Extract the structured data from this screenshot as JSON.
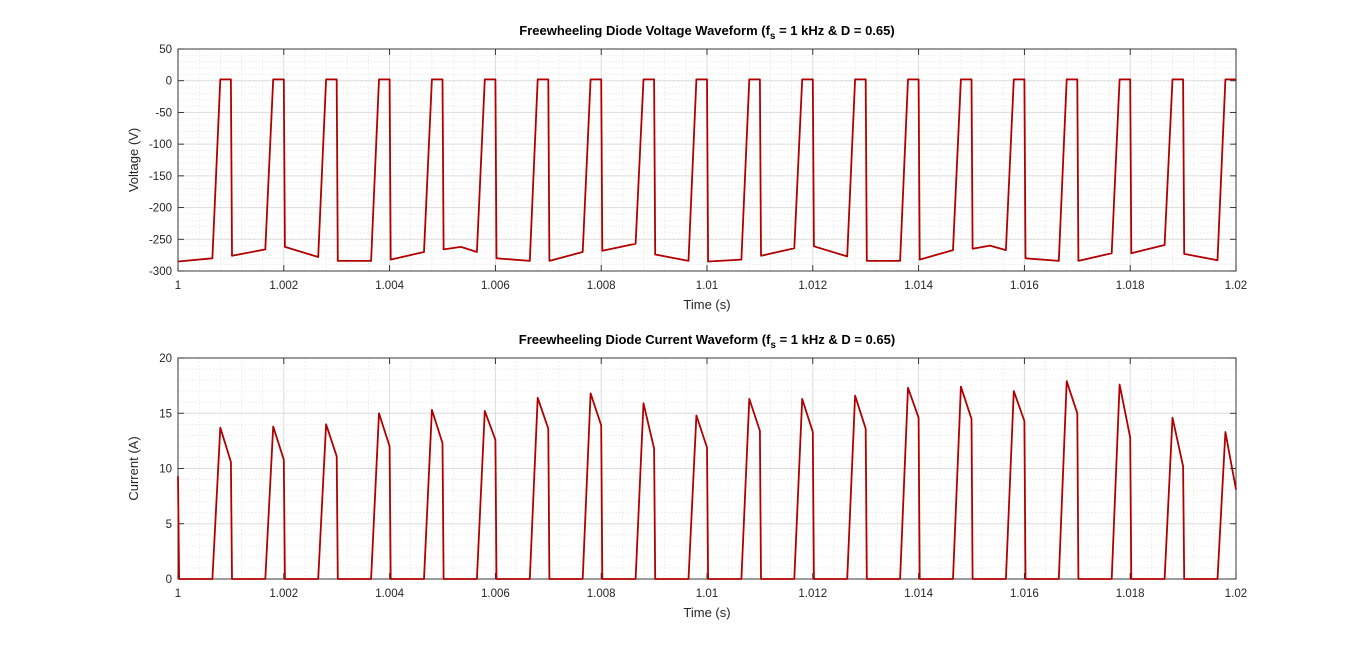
{
  "chart_data": [
    {
      "type": "line",
      "title_main": "Freewheeling Diode Voltage Waveform (f",
      "title_sub": "s",
      "title_rest": " = 1 kHz & D = 0.65)",
      "xlabel": "Time (s)",
      "ylabel": "Voltage (V)",
      "xlim": [
        1.0,
        1.02
      ],
      "ylim": [
        -300,
        50
      ],
      "xticks": [
        1.0,
        1.002,
        1.004,
        1.006,
        1.008,
        1.01,
        1.012,
        1.014,
        1.016,
        1.018,
        1.02
      ],
      "xtick_labels": [
        "1",
        "1.002",
        "1.004",
        "1.006",
        "1.008",
        "1.01",
        "1.012",
        "1.014",
        "1.016",
        "1.018",
        "1.02"
      ],
      "yticks": [
        -300,
        -250,
        -200,
        -150,
        -100,
        -50,
        0,
        50
      ],
      "ytick_labels": [
        "-300",
        "-250",
        "-200",
        "-150",
        "-100",
        "-50",
        "0",
        "50"
      ],
      "grid": true,
      "minor_grid": true,
      "line_color": "#b00000",
      "series": [
        {
          "x": [
            1.0,
            1.00065,
            1.0008,
            1.001,
            1.00102,
            1.00165,
            1.0018,
            1.002,
            1.00202,
            1.00265,
            1.0028,
            1.003,
            1.00302,
            1.00365,
            1.0038,
            1.004,
            1.00402,
            1.00465,
            1.0048,
            1.005,
            1.00502,
            1.00535,
            1.00565,
            1.0058,
            1.006,
            1.00602,
            1.00665,
            1.0068,
            1.007,
            1.00702,
            1.00765,
            1.0078,
            1.008,
            1.00802,
            1.00865,
            1.0088,
            1.009,
            1.00902,
            1.00965,
            1.0098,
            1.01,
            1.01002,
            1.01065,
            1.0108,
            1.011,
            1.01102,
            1.01165,
            1.0118,
            1.012,
            1.01202,
            1.01265,
            1.0128,
            1.013,
            1.01302,
            1.01365,
            1.0138,
            1.014,
            1.01402,
            1.01465,
            1.0148,
            1.015,
            1.01502,
            1.01535,
            1.01565,
            1.0158,
            1.016,
            1.01602,
            1.01665,
            1.0168,
            1.017,
            1.01702,
            1.01765,
            1.0178,
            1.018,
            1.01802,
            1.01865,
            1.0188,
            1.019,
            1.01902,
            1.01965,
            1.0198,
            1.02
          ],
          "y": [
            -285,
            -280,
            2,
            2,
            -276,
            -266,
            2,
            2,
            -262,
            -278,
            2,
            2,
            -284,
            -284,
            2,
            2,
            -282,
            -270,
            2,
            2,
            -266,
            -262,
            -270,
            2,
            2,
            -280,
            -284,
            2,
            2,
            -284,
            -270,
            2,
            2,
            -268,
            -257,
            2,
            2,
            -274,
            -284,
            2,
            2,
            -285,
            -282,
            2,
            2,
            -276,
            -264,
            2,
            2,
            -261,
            -277,
            2,
            2,
            -284,
            -284,
            2,
            2,
            -282,
            -267,
            2,
            2,
            -265,
            -260,
            -267,
            2,
            2,
            -280,
            -284,
            2,
            2,
            -284,
            -272,
            2,
            2,
            -272,
            -259,
            2,
            2,
            -273,
            -283,
            2,
            2
          ]
        }
      ]
    },
    {
      "type": "line",
      "title_main": "Freewheeling Diode Current Waveform (f",
      "title_sub": "s",
      "title_rest": " = 1 kHz & D = 0.65)",
      "xlabel": "Time (s)",
      "ylabel": "Current (A)",
      "xlim": [
        1.0,
        1.02
      ],
      "ylim": [
        0,
        20
      ],
      "xticks": [
        1.0,
        1.002,
        1.004,
        1.006,
        1.008,
        1.01,
        1.012,
        1.014,
        1.016,
        1.018,
        1.02
      ],
      "xtick_labels": [
        "1",
        "1.002",
        "1.004",
        "1.006",
        "1.008",
        "1.01",
        "1.012",
        "1.014",
        "1.016",
        "1.018",
        "1.02"
      ],
      "yticks": [
        0,
        5,
        10,
        15,
        20
      ],
      "ytick_labels": [
        "0",
        "5",
        "10",
        "15",
        "20"
      ],
      "grid": true,
      "minor_grid": true,
      "line_color": "#b00000",
      "series": [
        {
          "x": [
            1.0,
            1.00002,
            1.00065,
            1.0008,
            1.001,
            1.00102,
            1.00165,
            1.0018,
            1.002,
            1.00202,
            1.00265,
            1.0028,
            1.003,
            1.00302,
            1.00365,
            1.0038,
            1.004,
            1.00402,
            1.00465,
            1.0048,
            1.005,
            1.00502,
            1.00565,
            1.0058,
            1.006,
            1.00602,
            1.00665,
            1.0068,
            1.007,
            1.00702,
            1.00765,
            1.0078,
            1.008,
            1.00802,
            1.00865,
            1.0088,
            1.009,
            1.00902,
            1.00965,
            1.0098,
            1.01,
            1.01002,
            1.01065,
            1.0108,
            1.011,
            1.01102,
            1.01165,
            1.0118,
            1.012,
            1.01202,
            1.01265,
            1.0128,
            1.013,
            1.01302,
            1.01365,
            1.0138,
            1.014,
            1.01402,
            1.01465,
            1.0148,
            1.015,
            1.01502,
            1.01565,
            1.0158,
            1.016,
            1.01602,
            1.01665,
            1.0168,
            1.017,
            1.01702,
            1.01765,
            1.0178,
            1.018,
            1.01802,
            1.01865,
            1.0188,
            1.019,
            1.01902,
            1.01965,
            1.0198,
            1.02
          ],
          "y": [
            9.3,
            0,
            0,
            13.7,
            10.6,
            0,
            0,
            13.8,
            10.8,
            0,
            0,
            14.0,
            11.1,
            0,
            0,
            15.0,
            12.0,
            0,
            0,
            15.3,
            12.3,
            0,
            0,
            15.2,
            12.6,
            0,
            0,
            16.4,
            13.6,
            0,
            0,
            16.8,
            13.9,
            0,
            0,
            15.9,
            11.8,
            0,
            0,
            14.8,
            11.9,
            0,
            0,
            16.3,
            13.4,
            0,
            0,
            16.3,
            13.3,
            0,
            0,
            16.6,
            13.6,
            0,
            0,
            17.3,
            14.6,
            0,
            0,
            17.4,
            14.5,
            0,
            0,
            17.0,
            14.3,
            0,
            0,
            17.9,
            15.0,
            0,
            0,
            17.6,
            12.8,
            0,
            0,
            14.6,
            10.2,
            0,
            0,
            13.3,
            8.1
          ]
        }
      ]
    }
  ]
}
